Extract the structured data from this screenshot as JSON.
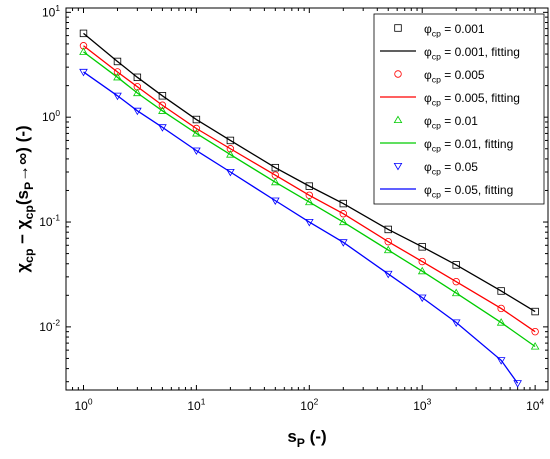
{
  "chart_data": {
    "type": "scatter",
    "xlabel": "s_{P} (-)",
    "ylabel": "χ_{cp} − χ_{cp}(s_{P}→∞) (-)",
    "xscale": "log",
    "yscale": "log",
    "xlim": [
      0.7,
      13000
    ],
    "ylim": [
      0.0025,
      11
    ],
    "xticks": [
      {
        "value": 1,
        "label": "10^0"
      },
      {
        "value": 10,
        "label": "10^1"
      },
      {
        "value": 100,
        "label": "10^2"
      },
      {
        "value": 1000,
        "label": "10^3"
      },
      {
        "value": 10000,
        "label": "10^4"
      }
    ],
    "yticks": [
      {
        "value": 0.01,
        "label": "10^-2"
      },
      {
        "value": 0.1,
        "label": "10^-1"
      },
      {
        "value": 1,
        "label": "10^0"
      },
      {
        "value": 10,
        "label": "10^1"
      }
    ],
    "legend": "upper right",
    "series": [
      {
        "name": "φ_{cp} = 0.001",
        "kind": "markers",
        "marker": "square",
        "color": "#000000",
        "x": [
          1,
          2,
          3,
          5,
          10,
          20,
          50,
          100,
          200,
          500,
          1000,
          2000,
          5000,
          10000
        ],
        "values": [
          6.3,
          3.4,
          2.4,
          1.6,
          0.95,
          0.6,
          0.33,
          0.22,
          0.15,
          0.085,
          0.058,
          0.039,
          0.022,
          0.014
        ]
      },
      {
        "name": "φ_{cp} = 0.001, fitting",
        "kind": "line",
        "color": "#000000",
        "x": [
          1,
          2,
          3,
          5,
          10,
          20,
          50,
          100,
          200,
          500,
          1000,
          2000,
          5000,
          10000
        ],
        "values": [
          6.3,
          3.4,
          2.4,
          1.6,
          0.95,
          0.6,
          0.33,
          0.22,
          0.15,
          0.085,
          0.058,
          0.039,
          0.022,
          0.014
        ]
      },
      {
        "name": "φ_{cp} = 0.005",
        "kind": "markers",
        "marker": "circle",
        "color": "#ff0000",
        "x": [
          1,
          2,
          3,
          5,
          10,
          20,
          50,
          100,
          200,
          500,
          1000,
          2000,
          5000,
          10000
        ],
        "values": [
          4.8,
          2.7,
          1.95,
          1.3,
          0.78,
          0.5,
          0.28,
          0.18,
          0.12,
          0.065,
          0.042,
          0.027,
          0.015,
          0.009
        ]
      },
      {
        "name": "φ_{cp} = 0.005, fitting",
        "kind": "line",
        "color": "#ff0000",
        "x": [
          1,
          2,
          3,
          5,
          10,
          20,
          50,
          100,
          200,
          500,
          1000,
          2000,
          5000,
          10000
        ],
        "values": [
          4.8,
          2.7,
          1.95,
          1.3,
          0.78,
          0.5,
          0.28,
          0.18,
          0.12,
          0.065,
          0.042,
          0.027,
          0.015,
          0.009
        ]
      },
      {
        "name": "φ_{cp} = 0.01",
        "kind": "markers",
        "marker": "triangle-up",
        "color": "#00cc00",
        "x": [
          1,
          2,
          3,
          5,
          10,
          20,
          50,
          100,
          200,
          500,
          1000,
          2000,
          5000,
          10000
        ],
        "values": [
          4.2,
          2.4,
          1.7,
          1.15,
          0.7,
          0.44,
          0.24,
          0.155,
          0.1,
          0.054,
          0.034,
          0.021,
          0.011,
          0.0065
        ]
      },
      {
        "name": "φ_{cp} = 0.01, fitting",
        "kind": "line",
        "color": "#00cc00",
        "x": [
          1,
          2,
          3,
          5,
          10,
          20,
          50,
          100,
          200,
          500,
          1000,
          2000,
          5000,
          10000
        ],
        "values": [
          4.2,
          2.4,
          1.7,
          1.15,
          0.7,
          0.44,
          0.24,
          0.155,
          0.1,
          0.054,
          0.034,
          0.021,
          0.011,
          0.0065
        ]
      },
      {
        "name": "φ_{cp} = 0.05",
        "kind": "markers",
        "marker": "triangle-down",
        "color": "#0000ff",
        "x": [
          1,
          2,
          3,
          5,
          10,
          20,
          50,
          100,
          200,
          500,
          1000,
          2000,
          5000,
          7000
        ],
        "values": [
          2.7,
          1.6,
          1.15,
          0.8,
          0.48,
          0.3,
          0.16,
          0.1,
          0.064,
          0.032,
          0.019,
          0.011,
          0.0048,
          0.0029
        ]
      },
      {
        "name": "φ_{cp} = 0.05, fitting",
        "kind": "line",
        "color": "#0000ff",
        "x": [
          1,
          2,
          3,
          5,
          10,
          20,
          50,
          100,
          200,
          500,
          1000,
          2000,
          5000,
          7000
        ],
        "values": [
          2.7,
          1.6,
          1.15,
          0.8,
          0.48,
          0.3,
          0.16,
          0.1,
          0.064,
          0.032,
          0.019,
          0.011,
          0.0048,
          0.0029
        ]
      }
    ]
  }
}
